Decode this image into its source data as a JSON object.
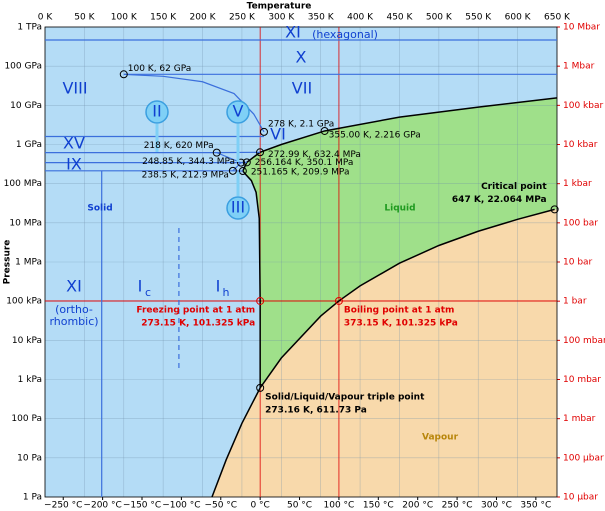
{
  "chart_data": {
    "type": "phase-diagram",
    "title": "Temperature",
    "y_label": "Pressure",
    "xlim": [
      0,
      650
    ],
    "xticks": [
      {
        "value": 0,
        "label": "0 K"
      },
      {
        "value": 50,
        "label": "50 K"
      },
      {
        "value": 100,
        "label": "100 K"
      },
      {
        "value": 150,
        "label": "150 K"
      },
      {
        "value": 200,
        "label": "200 K"
      },
      {
        "value": 250,
        "label": "250 K"
      },
      {
        "value": 300,
        "label": "300 K"
      },
      {
        "value": 350,
        "label": "350 K"
      },
      {
        "value": 400,
        "label": "400 K"
      },
      {
        "value": 450,
        "label": "450 K"
      },
      {
        "value": 500,
        "label": "500 K"
      },
      {
        "value": 550,
        "label": "550 K"
      },
      {
        "value": 600,
        "label": "600 K"
      },
      {
        "value": 650,
        "label": "650 K"
      }
    ],
    "x2lim": [
      -273.15,
      376.85
    ],
    "x2ticks": [
      {
        "value": -250,
        "label": "−250 °C"
      },
      {
        "value": -200,
        "label": "−200 °C"
      },
      {
        "value": -150,
        "label": "−150 °C"
      },
      {
        "value": -100,
        "label": "−100 °C"
      },
      {
        "value": -50,
        "label": "−50 °C"
      },
      {
        "value": 0,
        "label": "0 °C"
      },
      {
        "value": 50,
        "label": "50 °C"
      },
      {
        "value": 100,
        "label": "100 °C"
      },
      {
        "value": 150,
        "label": "150 °C"
      },
      {
        "value": 200,
        "label": "200 °C"
      },
      {
        "value": 250,
        "label": "250 °C"
      },
      {
        "value": 300,
        "label": "300 °C"
      },
      {
        "value": 350,
        "label": "350 °C"
      }
    ],
    "log_scale": true,
    "grid": true,
    "ylim": [
      1,
      1000000000000.0
    ],
    "yticks": [
      {
        "value": 1000000000000.0,
        "label": "1 TPa"
      },
      {
        "value": 100000000000.0,
        "label": "100 GPa"
      },
      {
        "value": 10000000000.0,
        "label": "10 GPa"
      },
      {
        "value": 1000000000.0,
        "label": "1 GPa"
      },
      {
        "value": 100000000.0,
        "label": "100 MPa"
      },
      {
        "value": 10000000.0,
        "label": "10 MPa"
      },
      {
        "value": 1000000.0,
        "label": "1 MPa"
      },
      {
        "value": 100000.0,
        "label": "100 kPa"
      },
      {
        "value": 10000.0,
        "label": "10 kPa"
      },
      {
        "value": 1000,
        "label": "1 kPa"
      },
      {
        "value": 100,
        "label": "100 Pa"
      },
      {
        "value": 10,
        "label": "10 Pa"
      },
      {
        "value": 1,
        "label": "1 Pa"
      }
    ],
    "y2lim": [
      1e-05,
      10000000.0
    ],
    "y2ticks": [
      {
        "value": 10000000.0,
        "label": "10 Mbar"
      },
      {
        "value": 1000000.0,
        "label": "1 Mbar"
      },
      {
        "value": 100000.0,
        "label": "100 kbar"
      },
      {
        "value": 10000.0,
        "label": "10 kbar"
      },
      {
        "value": 1000,
        "label": "1 kbar"
      },
      {
        "value": 100,
        "label": "100 bar"
      },
      {
        "value": 10,
        "label": "10 bar"
      },
      {
        "value": 1,
        "label": "1 bar"
      },
      {
        "value": 0.1,
        "label": "100 mbar"
      },
      {
        "value": 0.01,
        "label": "10 mbar"
      },
      {
        "value": 0.001,
        "label": "1 mbar"
      },
      {
        "value": 0.0001,
        "label": "100 μbar"
      },
      {
        "value": 1e-05,
        "label": "10 μbar"
      }
    ],
    "y2_color": "#e00000",
    "phases": [
      {
        "name": "Solid",
        "color": "#b4dcf6",
        "text_color": "#1040d0"
      },
      {
        "name": "Liquid",
        "color": "#9fe08a",
        "text_color": "#1f9a1f"
      },
      {
        "name": "Vapour",
        "color": "#f8d9ab",
        "text_color": "#b8860b"
      }
    ],
    "series": [
      {
        "color": "#000000",
        "x": [
          212,
          230,
          250,
          273.16
        ],
        "values": [
          1,
          8.9,
          76,
          611.73
        ]
      },
      {
        "color": "#000000",
        "x": [
          273.16,
          300,
          350,
          373.15,
          400,
          450,
          500,
          550,
          600,
          647
        ],
        "values": [
          611.73,
          3537,
          41680,
          101325,
          245770,
          932000,
          2640000,
          6100000,
          12300000,
          22064000
        ]
      },
      {
        "color": "#000000",
        "x": [
          273.16,
          273.15,
          272,
          268,
          262,
          255,
          251.165,
          256.164,
          272.99,
          300,
          355,
          450,
          550,
          650
        ],
        "values": [
          611.73,
          101325,
          13000000,
          60000000,
          120000000,
          170000000,
          209900000,
          350100000,
          632400000,
          1000000000,
          2216000000,
          5000000000,
          9000000000,
          15500000000
        ]
      },
      {
        "color": "#3b6fdc",
        "x": [
          0,
          650
        ],
        "values": [
          466000000000,
          466000000000
        ]
      },
      {
        "color": "#3b6fdc",
        "x": [
          100,
          650
        ],
        "values": [
          62000000000,
          62000000000
        ]
      },
      {
        "color": "#3b6fdc",
        "x": [
          100,
          150,
          200,
          240,
          265,
          278
        ],
        "values": [
          62000000000,
          55000000000,
          40000000000,
          20000000000,
          6000000000,
          2100000000
        ]
      },
      {
        "color": "#3b6fdc",
        "x": [
          0,
          278
        ],
        "values": [
          1600000000,
          1600000000
        ]
      },
      {
        "color": "#3b6fdc",
        "x": [
          0,
          218,
          272.99
        ],
        "values": [
          620000000,
          620000000,
          632400000
        ]
      },
      {
        "color": "#3b6fdc",
        "x": [
          0,
          248.85,
          256.164
        ],
        "values": [
          344300000,
          344300000,
          350100000
        ]
      },
      {
        "color": "#3b6fdc",
        "x": [
          0,
          238.5,
          251.165
        ],
        "values": [
          212900000,
          212900000,
          209900000
        ]
      },
      {
        "color": "#3b6fdc",
        "x": [
          218,
          248.85
        ],
        "values": [
          620000000,
          344300000
        ]
      },
      {
        "color": "#3b6fdc",
        "x": [
          238.5,
          248.85
        ],
        "values": [
          212900000,
          344300000
        ]
      },
      {
        "color": "#3b6fdc",
        "x": [
          72,
          72
        ],
        "values": [
          212900000,
          1
        ]
      },
      {
        "color": "#3b6fdc",
        "dashed": true,
        "x": [
          170,
          170
        ],
        "values": [
          7400000,
          1700
        ]
      }
    ],
    "points": [
      {
        "x": 100,
        "y": 62000000000,
        "label": "100 K, 62 GPa"
      },
      {
        "x": 278,
        "y": 2100000000,
        "label": "278 K, 2.1 GPa"
      },
      {
        "x": 355,
        "y": 2216000000,
        "label": "355.00 K, 2.216 GPa"
      },
      {
        "x": 218,
        "y": 620000000,
        "label": "218 K, 620 MPa"
      },
      {
        "x": 272.99,
        "y": 632400000,
        "label": "272.99 K, 632.4 MPa"
      },
      {
        "x": 248.85,
        "y": 344300000,
        "label": "248.85 K, 344.3 MPa"
      },
      {
        "x": 256.164,
        "y": 350100000,
        "label": "256.164 K, 350.1 MPa"
      },
      {
        "x": 238.5,
        "y": 212900000,
        "label": "238.5 K, 212.9 MPa"
      },
      {
        "x": 251.165,
        "y": 209900000,
        "label": "251.165 K, 209.9 MPa"
      },
      {
        "x": 273.15,
        "y": 101325,
        "name": "Freezing point at 1 atm",
        "label": "273.15 K, 101.325 kPa",
        "color": "#e00000",
        "guides": true
      },
      {
        "x": 373.15,
        "y": 101325,
        "name": "Boiling point at 1 atm",
        "label": "373.15 K, 101.325 kPa",
        "color": "#e00000",
        "guides": true
      },
      {
        "x": 273.16,
        "y": 611.73,
        "name": "Solid/Liquid/Vapour triple point",
        "label": "273.16 K, 611.73 Pa"
      },
      {
        "x": 647,
        "y": 22064000,
        "name": "Critical point",
        "label": "647 K, 22.064 MPa"
      }
    ],
    "region_labels": [
      "VIII",
      "VII",
      "X",
      "XI",
      "(hexagonal)",
      "XV",
      "IX",
      "VI",
      "II",
      "V",
      "III",
      "XI",
      "(ortho-",
      "rhombic)",
      "I",
      "c",
      "I",
      "h"
    ]
  }
}
